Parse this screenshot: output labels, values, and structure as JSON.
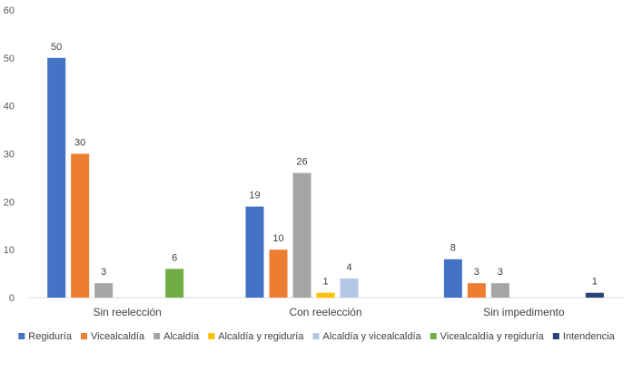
{
  "chart_data": {
    "type": "bar",
    "title": "",
    "xlabel": "",
    "ylabel": "",
    "ylim": [
      0,
      60
    ],
    "yticks": [
      0,
      10,
      20,
      30,
      40,
      50,
      60
    ],
    "grid": false,
    "legend_position": "bottom",
    "categories": [
      "Sin reelección",
      "Con reelección",
      "Sin impedimento"
    ],
    "series": [
      {
        "name": "Regiduría",
        "color": "#4472c4",
        "values": [
          50,
          19,
          8
        ]
      },
      {
        "name": "Vicealcaldía",
        "color": "#ed7d31",
        "values": [
          30,
          10,
          3
        ]
      },
      {
        "name": "Alcaldía",
        "color": "#a5a5a5",
        "values": [
          3,
          26,
          3
        ]
      },
      {
        "name": "Alcaldía y regiduría",
        "color": "#ffc000",
        "values": [
          null,
          1,
          null
        ]
      },
      {
        "name": "Alcaldía y vicealcaldía",
        "color": "#b4c7e7",
        "values": [
          null,
          4,
          null
        ]
      },
      {
        "name": "Vicealcaldía y regiduría",
        "color": "#70ad47",
        "values": [
          6,
          null,
          null
        ]
      },
      {
        "name": "Intendencia",
        "color": "#264478",
        "values": [
          null,
          null,
          1
        ]
      }
    ]
  }
}
